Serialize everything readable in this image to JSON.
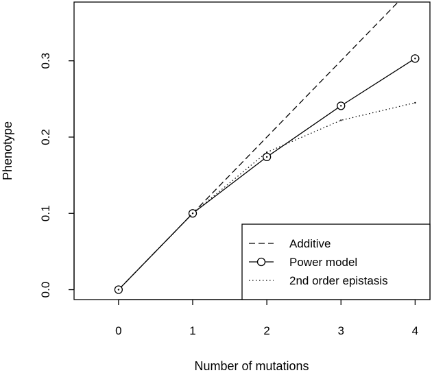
{
  "chart_data": {
    "type": "line",
    "title": "",
    "xlabel": "Number of mutations",
    "ylabel": "Phenotype",
    "x": [
      0,
      1,
      2,
      3,
      4
    ],
    "xlim": [
      -0.6,
      4.2
    ],
    "ylim": [
      -0.013,
      0.377
    ],
    "x_ticks": [
      "0",
      "1",
      "2",
      "3",
      "4"
    ],
    "y_ticks": [
      "0.0",
      "0.1",
      "0.2",
      "0.3"
    ],
    "grid": false,
    "legend_position": "bottom-right",
    "series": [
      {
        "name": "Additive",
        "line_style": "dashed",
        "marker": "none",
        "values": [
          0.0,
          0.1,
          0.2,
          0.3,
          0.4
        ]
      },
      {
        "name": "Power model",
        "line_style": "solid",
        "marker": "circle",
        "values": [
          0.0,
          0.1,
          0.174,
          0.241,
          0.303
        ]
      },
      {
        "name": "2nd order epistasis",
        "line_style": "dotted",
        "marker": "point",
        "values": [
          0.0,
          0.1,
          0.18,
          0.222,
          0.245
        ]
      }
    ],
    "colors": {
      "line": "#000000",
      "background": "#ffffff"
    }
  }
}
